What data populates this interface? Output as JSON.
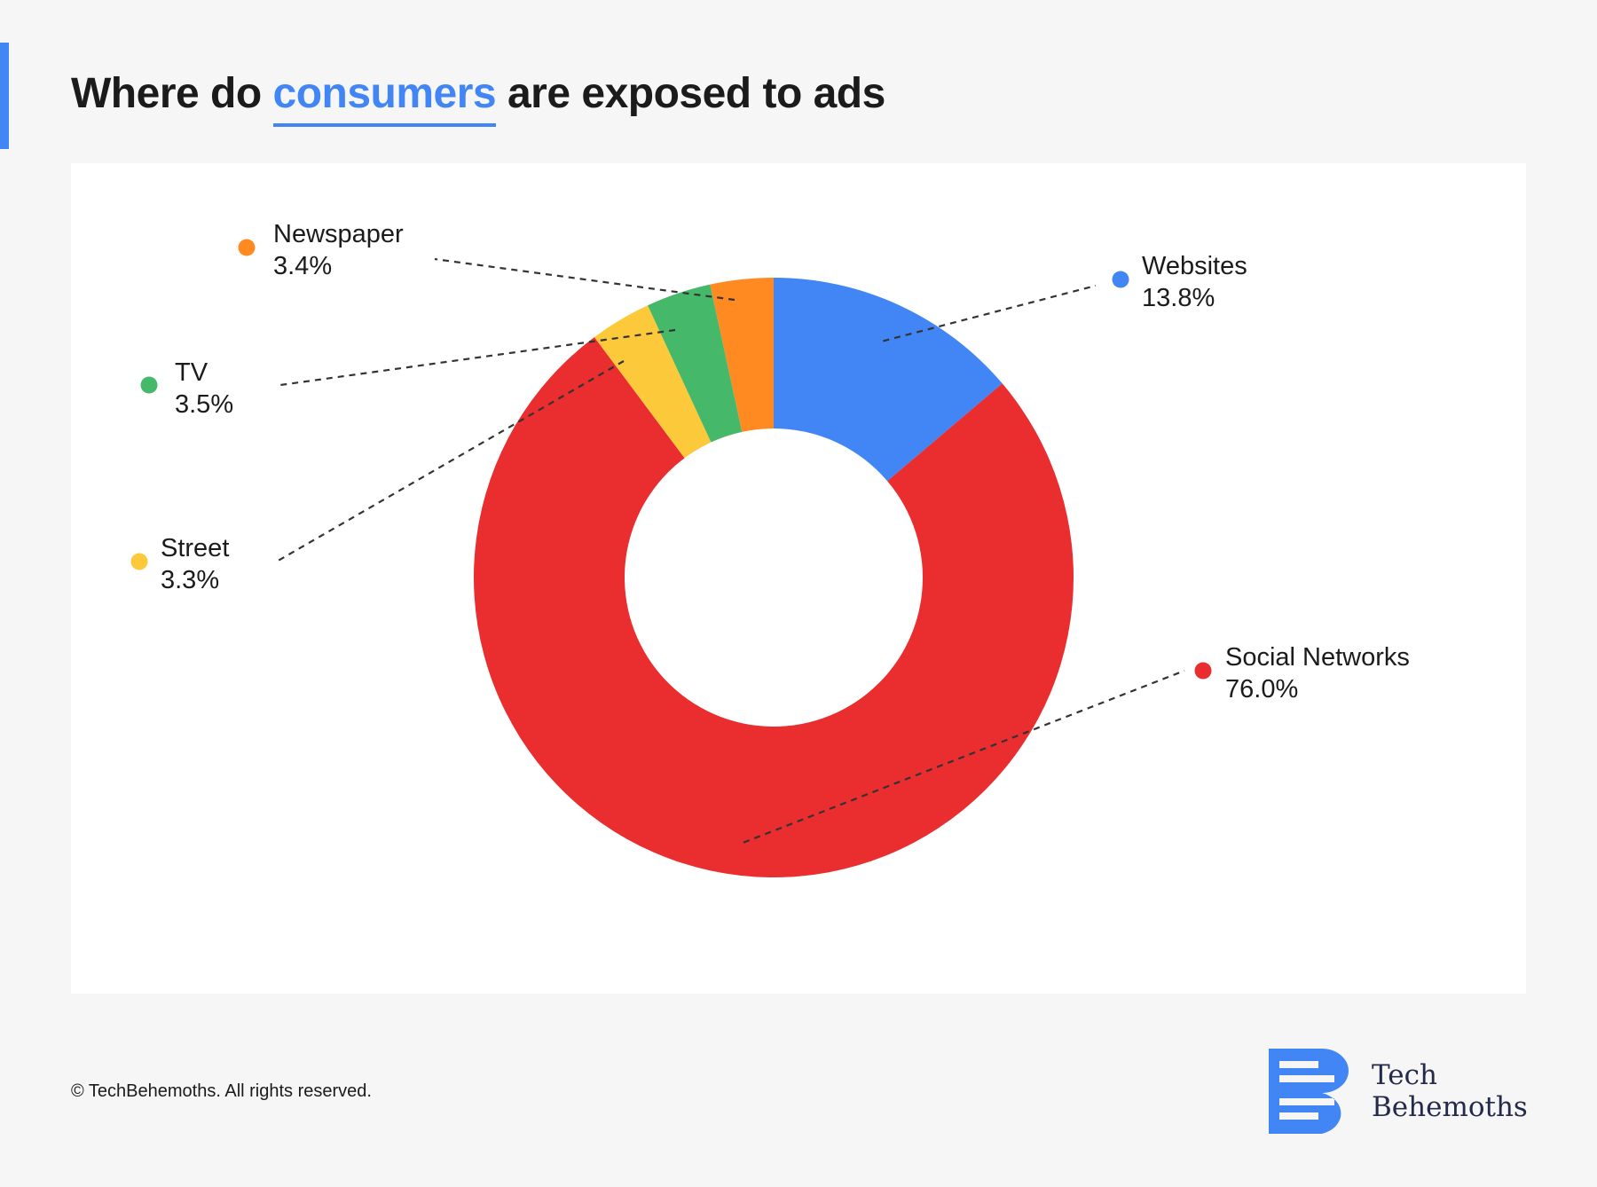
{
  "title": {
    "prefix": "Where do",
    "highlight": "consumers",
    "suffix": "are exposed to ads"
  },
  "chart_data": {
    "type": "pie",
    "title": "Where do consumers are exposed to ads",
    "donut": true,
    "categories": [
      "Websites",
      "Social Networks",
      "Street",
      "TV",
      "Newspaper"
    ],
    "values": [
      13.8,
      76.0,
      3.3,
      3.5,
      3.4
    ],
    "value_labels": [
      "13.8%",
      "76.0%",
      "3.3%",
      "3.5%",
      "3.4%"
    ],
    "colors": [
      "#4285f4",
      "#ea2d2e",
      "#fbc93a",
      "#46b86a",
      "#ff8a22"
    ],
    "start": "12 o'clock",
    "direction": "clockwise",
    "legend": "callout labels with colored dots and dashed leader lines"
  },
  "footer": {
    "copyright": "© TechBehemoths. All rights reserved."
  },
  "logo": {
    "line1": "Tech",
    "line2": "Behemoths",
    "color": "#4285f4",
    "text_color": "#232a4a"
  }
}
